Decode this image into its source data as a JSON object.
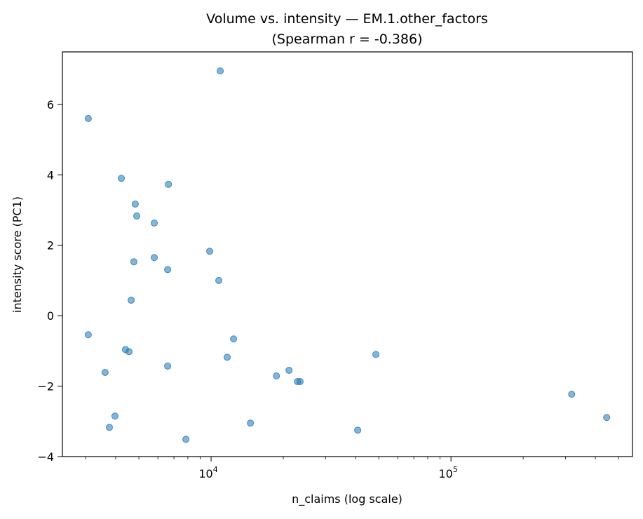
{
  "chart_data": {
    "type": "scatter",
    "title": "Volume vs. intensity — EM.1.other_factors",
    "subtitle": "(Spearman r = -0.386)",
    "xlabel": "n_claims (log scale)",
    "ylabel": "intensity score (PC1)",
    "xscale": "log",
    "xlim": [
      2400,
      571000
    ],
    "ylim": [
      -4.0,
      7.49
    ],
    "xticks": [
      {
        "value": 10000,
        "base": "10",
        "exp": "4"
      },
      {
        "value": 100000,
        "base": "10",
        "exp": "5"
      }
    ],
    "yticks": [
      {
        "value": -4,
        "label": "−4"
      },
      {
        "value": -2,
        "label": "−2"
      },
      {
        "value": 0,
        "label": "0"
      },
      {
        "value": 2,
        "label": "2"
      },
      {
        "value": 4,
        "label": "4"
      },
      {
        "value": 6,
        "label": "6"
      }
    ],
    "grid": false,
    "marker_color": "#1f77b4",
    "marker_alpha": 0.55,
    "points": [
      {
        "x": 3076,
        "y": 5.6
      },
      {
        "x": 10920,
        "y": 6.95
      },
      {
        "x": 4226,
        "y": 3.9
      },
      {
        "x": 6640,
        "y": 3.73
      },
      {
        "x": 4830,
        "y": 3.17
      },
      {
        "x": 4898,
        "y": 2.83
      },
      {
        "x": 5797,
        "y": 2.63
      },
      {
        "x": 9866,
        "y": 1.83
      },
      {
        "x": 5797,
        "y": 1.65
      },
      {
        "x": 4766,
        "y": 1.53
      },
      {
        "x": 6590,
        "y": 1.31
      },
      {
        "x": 10770,
        "y": 1.0
      },
      {
        "x": 4643,
        "y": 0.44
      },
      {
        "x": 3076,
        "y": -0.54
      },
      {
        "x": 12410,
        "y": -0.66
      },
      {
        "x": 4397,
        "y": -0.96
      },
      {
        "x": 4548,
        "y": -1.02
      },
      {
        "x": 11670,
        "y": -1.18
      },
      {
        "x": 48640,
        "y": -1.1
      },
      {
        "x": 6590,
        "y": -1.43
      },
      {
        "x": 21130,
        "y": -1.55
      },
      {
        "x": 3615,
        "y": -1.61
      },
      {
        "x": 18720,
        "y": -1.71
      },
      {
        "x": 22910,
        "y": -1.87
      },
      {
        "x": 23500,
        "y": -1.87
      },
      {
        "x": 318500,
        "y": -2.23
      },
      {
        "x": 3973,
        "y": -2.85
      },
      {
        "x": 445800,
        "y": -2.89
      },
      {
        "x": 14590,
        "y": -3.05
      },
      {
        "x": 3767,
        "y": -3.17
      },
      {
        "x": 40840,
        "y": -3.25
      },
      {
        "x": 7850,
        "y": -3.51
      }
    ]
  }
}
